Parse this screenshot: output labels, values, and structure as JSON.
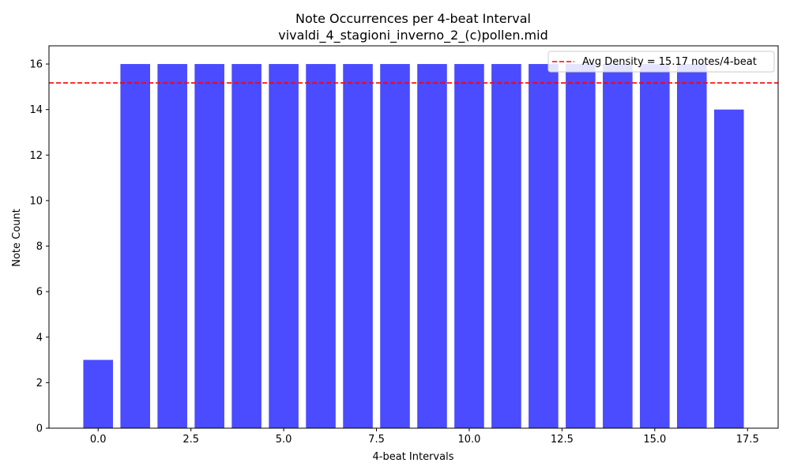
{
  "chart_data": {
    "type": "bar",
    "title": "Note Occurrences per 4-beat Interval",
    "subtitle": "vivaldi_4_stagioni_inverno_2_(c)pollen.mid",
    "xlabel": "4-beat Intervals",
    "ylabel": "Note Count",
    "x": [
      0,
      1,
      2,
      3,
      4,
      5,
      6,
      7,
      8,
      9,
      10,
      11,
      12,
      13,
      14,
      15,
      16,
      17
    ],
    "values": [
      3,
      16,
      16,
      16,
      16,
      16,
      16,
      16,
      16,
      16,
      16,
      16,
      16,
      16,
      16,
      16,
      16,
      14
    ],
    "xlim": [
      -1.325,
      18.325
    ],
    "ylim": [
      0,
      16.8
    ],
    "xticks": [
      "0.0",
      "2.5",
      "5.0",
      "7.5",
      "10.0",
      "12.5",
      "15.0",
      "17.5"
    ],
    "xtick_values": [
      0,
      2.5,
      5,
      7.5,
      10,
      12.5,
      15,
      17.5
    ],
    "yticks": [
      "0",
      "2",
      "4",
      "6",
      "8",
      "10",
      "12",
      "14",
      "16"
    ],
    "ytick_values": [
      0,
      2,
      4,
      6,
      8,
      10,
      12,
      14,
      16
    ],
    "bar_color": "#4b4bff",
    "reference_line": {
      "label": "Avg Density = 15.17 notes/4-beat",
      "value": 15.17,
      "color": "#ff0000",
      "style": "dashed"
    },
    "legend_position": "top-right",
    "grid": false
  }
}
